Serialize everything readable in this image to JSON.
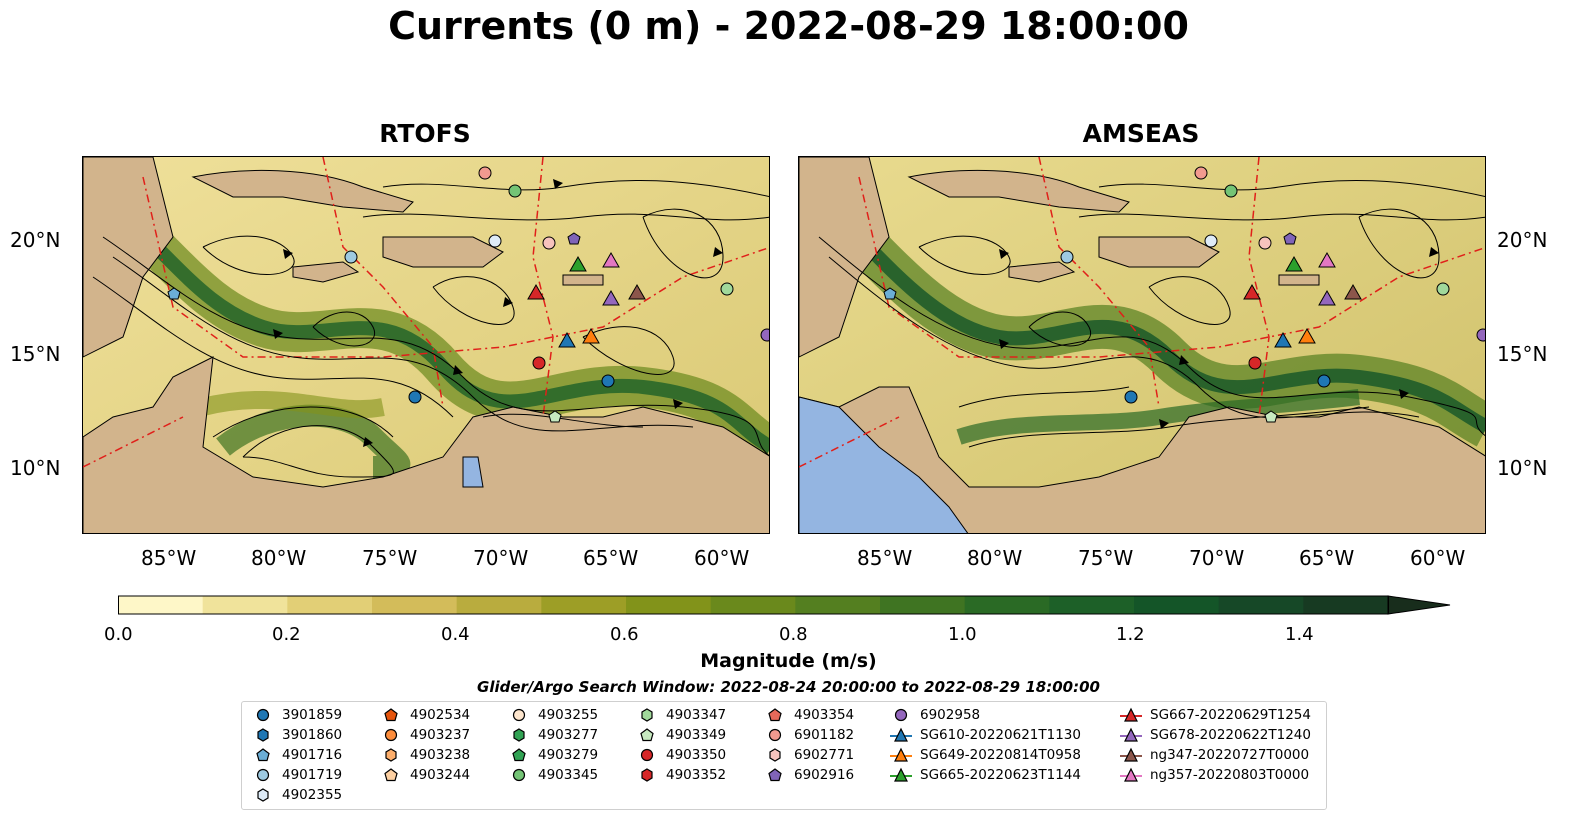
{
  "title": "Currents (0 m) - 2022-08-29 18:00:00",
  "panels": [
    {
      "title": "RTOFS"
    },
    {
      "title": "AMSEAS"
    }
  ],
  "axes": {
    "lon_labels": [
      "85°W",
      "80°W",
      "75°W",
      "70°W",
      "65°W",
      "60°W"
    ],
    "lat_labels": [
      "20°N",
      "15°N",
      "10°N"
    ]
  },
  "colorbar": {
    "label": "Magnitude (m/s)",
    "ticks": [
      "0.0",
      "0.2",
      "0.4",
      "0.6",
      "0.8",
      "1.0",
      "1.2",
      "1.4"
    ],
    "colors": [
      "#fef7c8",
      "#f0e39b",
      "#e2cf76",
      "#d3bc5a",
      "#b9ac3e",
      "#9d9e26",
      "#82931a",
      "#6a891c",
      "#547f20",
      "#3f7422",
      "#2a6a25",
      "#1d6028",
      "#145528",
      "#164827",
      "#173a22",
      "#182d1c"
    ]
  },
  "search_window": "Glider/Argo Search Window: 2022-08-24 20:00:00 to 2022-08-29 18:00:00",
  "colors": {
    "land": "#d2b48c",
    "water": "#94b5e1",
    "eez_line": "#e0201a",
    "low_speed": "#fef7c8",
    "high_speed": "#173a22"
  },
  "legend": {
    "columns": [
      [
        {
          "label": "3901859",
          "marker": "circle",
          "color": "#1f77b4"
        },
        {
          "label": "3901860",
          "marker": "hexagon",
          "color": "#1f77b4"
        },
        {
          "label": "4901716",
          "marker": "pentagon",
          "color": "#6baed6"
        },
        {
          "label": "4901719",
          "marker": "circle",
          "color": "#9ecae1"
        },
        {
          "label": "4902355",
          "marker": "hexagon",
          "color": "#deebf7"
        }
      ],
      [
        {
          "label": "4902534",
          "marker": "pentagon",
          "color": "#e6550d"
        },
        {
          "label": "4903237",
          "marker": "circle",
          "color": "#fd8d3c"
        },
        {
          "label": "4903238",
          "marker": "hexagon",
          "color": "#fdae6b"
        },
        {
          "label": "4903244",
          "marker": "pentagon",
          "color": "#fdd0a2"
        }
      ],
      [
        {
          "label": "4903255",
          "marker": "circle",
          "color": "#fee6ce"
        },
        {
          "label": "4903277",
          "marker": "hexagon",
          "color": "#31a354"
        },
        {
          "label": "4903279",
          "marker": "pentagon",
          "color": "#31a354"
        },
        {
          "label": "4903345",
          "marker": "circle",
          "color": "#74c476"
        }
      ],
      [
        {
          "label": "4903347",
          "marker": "hexagon",
          "color": "#a1d99b"
        },
        {
          "label": "4903349",
          "marker": "pentagon",
          "color": "#c7e9c0"
        },
        {
          "label": "4903350",
          "marker": "circle",
          "color": "#d62728"
        },
        {
          "label": "4903352",
          "marker": "hexagon",
          "color": "#d62728"
        }
      ],
      [
        {
          "label": "4903354",
          "marker": "pentagon",
          "color": "#e7695a"
        },
        {
          "label": "6901182",
          "marker": "circle",
          "color": "#f29a8f"
        },
        {
          "label": "6902771",
          "marker": "hexagon",
          "color": "#f7c3bd"
        },
        {
          "label": "6902916",
          "marker": "pentagon",
          "color": "#8064b8"
        }
      ],
      [
        {
          "label": "6902958",
          "marker": "circle",
          "color": "#9467bd"
        },
        {
          "label": "SG610-20220621T1130",
          "marker": "triangle",
          "color": "#1f77b4"
        },
        {
          "label": "SG649-20220814T0958",
          "marker": "triangle",
          "color": "#ff7f0e"
        },
        {
          "label": "SG665-20220623T1144",
          "marker": "triangle",
          "color": "#2ca02c"
        }
      ],
      [
        {
          "label": "SG667-20220629T1254",
          "marker": "triangle",
          "color": "#d62728"
        },
        {
          "label": "SG678-20220622T1240",
          "marker": "triangle",
          "color": "#9467bd"
        },
        {
          "label": "ng347-20220727T0000",
          "marker": "triangle",
          "color": "#8c564b"
        },
        {
          "label": "ng357-20220803T0000",
          "marker": "triangle",
          "color": "#e377c2"
        }
      ]
    ]
  }
}
